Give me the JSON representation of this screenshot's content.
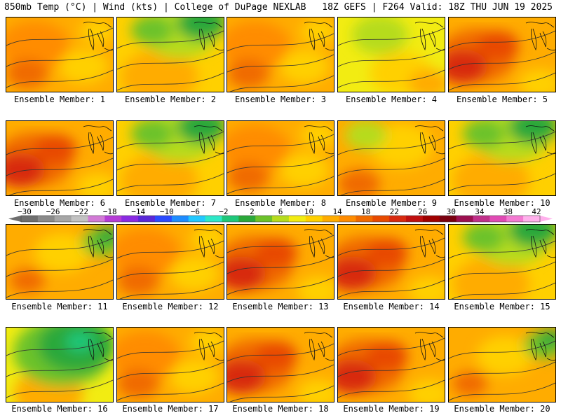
{
  "header": {
    "left": "850mb Temp (°C) | Wind (kts) | College of DuPage NEXLAB",
    "right": "18Z GEFS | F264 Valid: 18Z THU JUN 19 2025"
  },
  "colorbar": {
    "labels": [
      "−30",
      "−26",
      "−22",
      "−18",
      "−14",
      "−10",
      "−6",
      "−2",
      "2",
      "6",
      "10",
      "14",
      "18",
      "22",
      "26",
      "30",
      "34",
      "38",
      "42"
    ],
    "colors": [
      "#6e6e6e",
      "#8a8a8a",
      "#a6a6a6",
      "#c2c2c2",
      "#d27ad6",
      "#b53cd6",
      "#8a2be2",
      "#5a28d8",
      "#2a4bff",
      "#1e8cff",
      "#23c8ff",
      "#2ee8c8",
      "#1fc87a",
      "#2aa83a",
      "#6cc22a",
      "#b6dc1e",
      "#f2ec12",
      "#ffd000",
      "#ffac00",
      "#ff8c00",
      "#f06a00",
      "#e84a00",
      "#d82a10",
      "#c01010",
      "#a00000",
      "#7a0010",
      "#9c1050",
      "#c0308a",
      "#e04ab4",
      "#f47ad2",
      "#ffb0ec"
    ]
  },
  "members": [
    {
      "label": "Ensemble Member: 1",
      "scheme": "warm"
    },
    {
      "label": "Ensemble Member: 2",
      "scheme": "greenN"
    },
    {
      "label": "Ensemble Member: 3",
      "scheme": "warm"
    },
    {
      "label": "Ensemble Member: 4",
      "scheme": "yellow"
    },
    {
      "label": "Ensemble Member: 5",
      "scheme": "hotW"
    },
    {
      "label": "Ensemble Member: 6",
      "scheme": "hotW"
    },
    {
      "label": "Ensemble Member: 7",
      "scheme": "greenN"
    },
    {
      "label": "Ensemble Member: 8",
      "scheme": "warm"
    },
    {
      "label": "Ensemble Member: 9",
      "scheme": "warmGreen"
    },
    {
      "label": "Ensemble Member: 10",
      "scheme": "greenN"
    },
    {
      "label": "Ensemble Member: 11",
      "scheme": "warmGreenNE"
    },
    {
      "label": "Ensemble Member: 12",
      "scheme": "warm"
    },
    {
      "label": "Ensemble Member: 13",
      "scheme": "hotW"
    },
    {
      "label": "Ensemble Member: 14",
      "scheme": "hotW"
    },
    {
      "label": "Ensemble Member: 15",
      "scheme": "greenN"
    },
    {
      "label": "Ensemble Member: 16",
      "scheme": "greenStrong"
    },
    {
      "label": "Ensemble Member: 17",
      "scheme": "warm"
    },
    {
      "label": "Ensemble Member: 18",
      "scheme": "hotW"
    },
    {
      "label": "Ensemble Member: 19",
      "scheme": "hotW"
    },
    {
      "label": "Ensemble Member: 20",
      "scheme": "warmGreenNE"
    }
  ]
}
